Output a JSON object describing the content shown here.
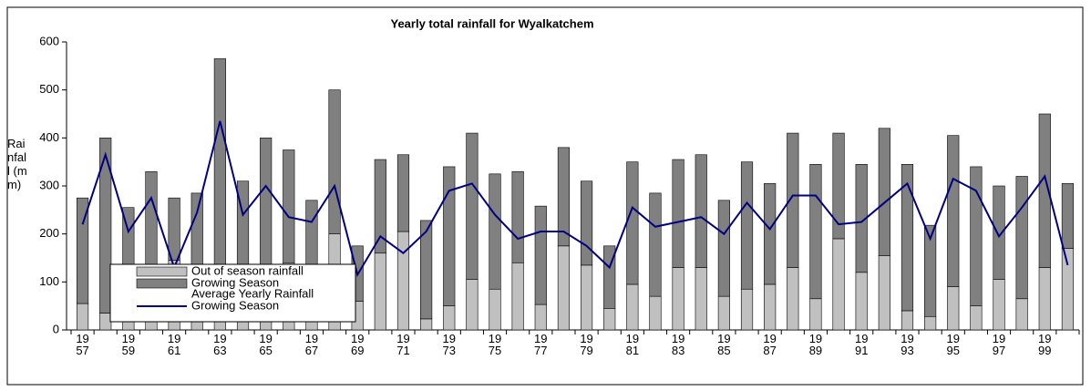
{
  "chart_data": {
    "type": "bar",
    "title": "Yearly total rainfall for Wyalkatchem",
    "y_label": "Rainfall (mm)",
    "categories": [
      "1957",
      null,
      "1959",
      null,
      "1961",
      null,
      "1963",
      null,
      "1965",
      null,
      "1967",
      null,
      "1969",
      null,
      "1971",
      null,
      "1973",
      null,
      "1975",
      null,
      "1977",
      null,
      "1979",
      null,
      "1981",
      null,
      "1983",
      null,
      "1985",
      null,
      "1987",
      null,
      "1989",
      null,
      "1991",
      null,
      "1993",
      null,
      "1995",
      null,
      "1997",
      null,
      "1999",
      null
    ],
    "series": [
      {
        "name": "Out of season rainfall",
        "type": "bar",
        "color": "#c0c0c0",
        "values": [
          55,
          35,
          50,
          55,
          145,
          40,
          130,
          70,
          100,
          140,
          45,
          200,
          60,
          160,
          205,
          23,
          50,
          105,
          85,
          140,
          53,
          175,
          135,
          45,
          95,
          70,
          130,
          130,
          70,
          85,
          95,
          130,
          65,
          190,
          120,
          155,
          40,
          28,
          90,
          50,
          105,
          65,
          130,
          170
        ]
      },
      {
        "name": "Growing Season",
        "type": "bar",
        "color": "#808080",
        "values": [
          220,
          365,
          205,
          275,
          130,
          245,
          435,
          240,
          300,
          235,
          225,
          300,
          115,
          195,
          160,
          205,
          290,
          305,
          240,
          190,
          205,
          205,
          175,
          130,
          255,
          215,
          225,
          235,
          200,
          265,
          210,
          280,
          280,
          220,
          225,
          265,
          305,
          190,
          315,
          290,
          195,
          255,
          320,
          135
        ]
      },
      {
        "name": "Average Yearly Rainfall",
        "type": "line",
        "color": "#000080"
      },
      {
        "name": "Growing Season",
        "type": "line",
        "color": "#000080",
        "values": [
          220,
          365,
          205,
          275,
          130,
          245,
          435,
          240,
          300,
          235,
          225,
          300,
          115,
          195,
          160,
          205,
          290,
          305,
          240,
          190,
          205,
          205,
          175,
          130,
          255,
          215,
          225,
          235,
          200,
          265,
          210,
          280,
          280,
          220,
          225,
          265,
          305,
          190,
          315,
          290,
          195,
          255,
          320,
          135
        ]
      }
    ],
    "ylim": [
      0,
      600
    ],
    "yticks": [
      0,
      100,
      200,
      300,
      400,
      500,
      600
    ],
    "grid": false
  }
}
